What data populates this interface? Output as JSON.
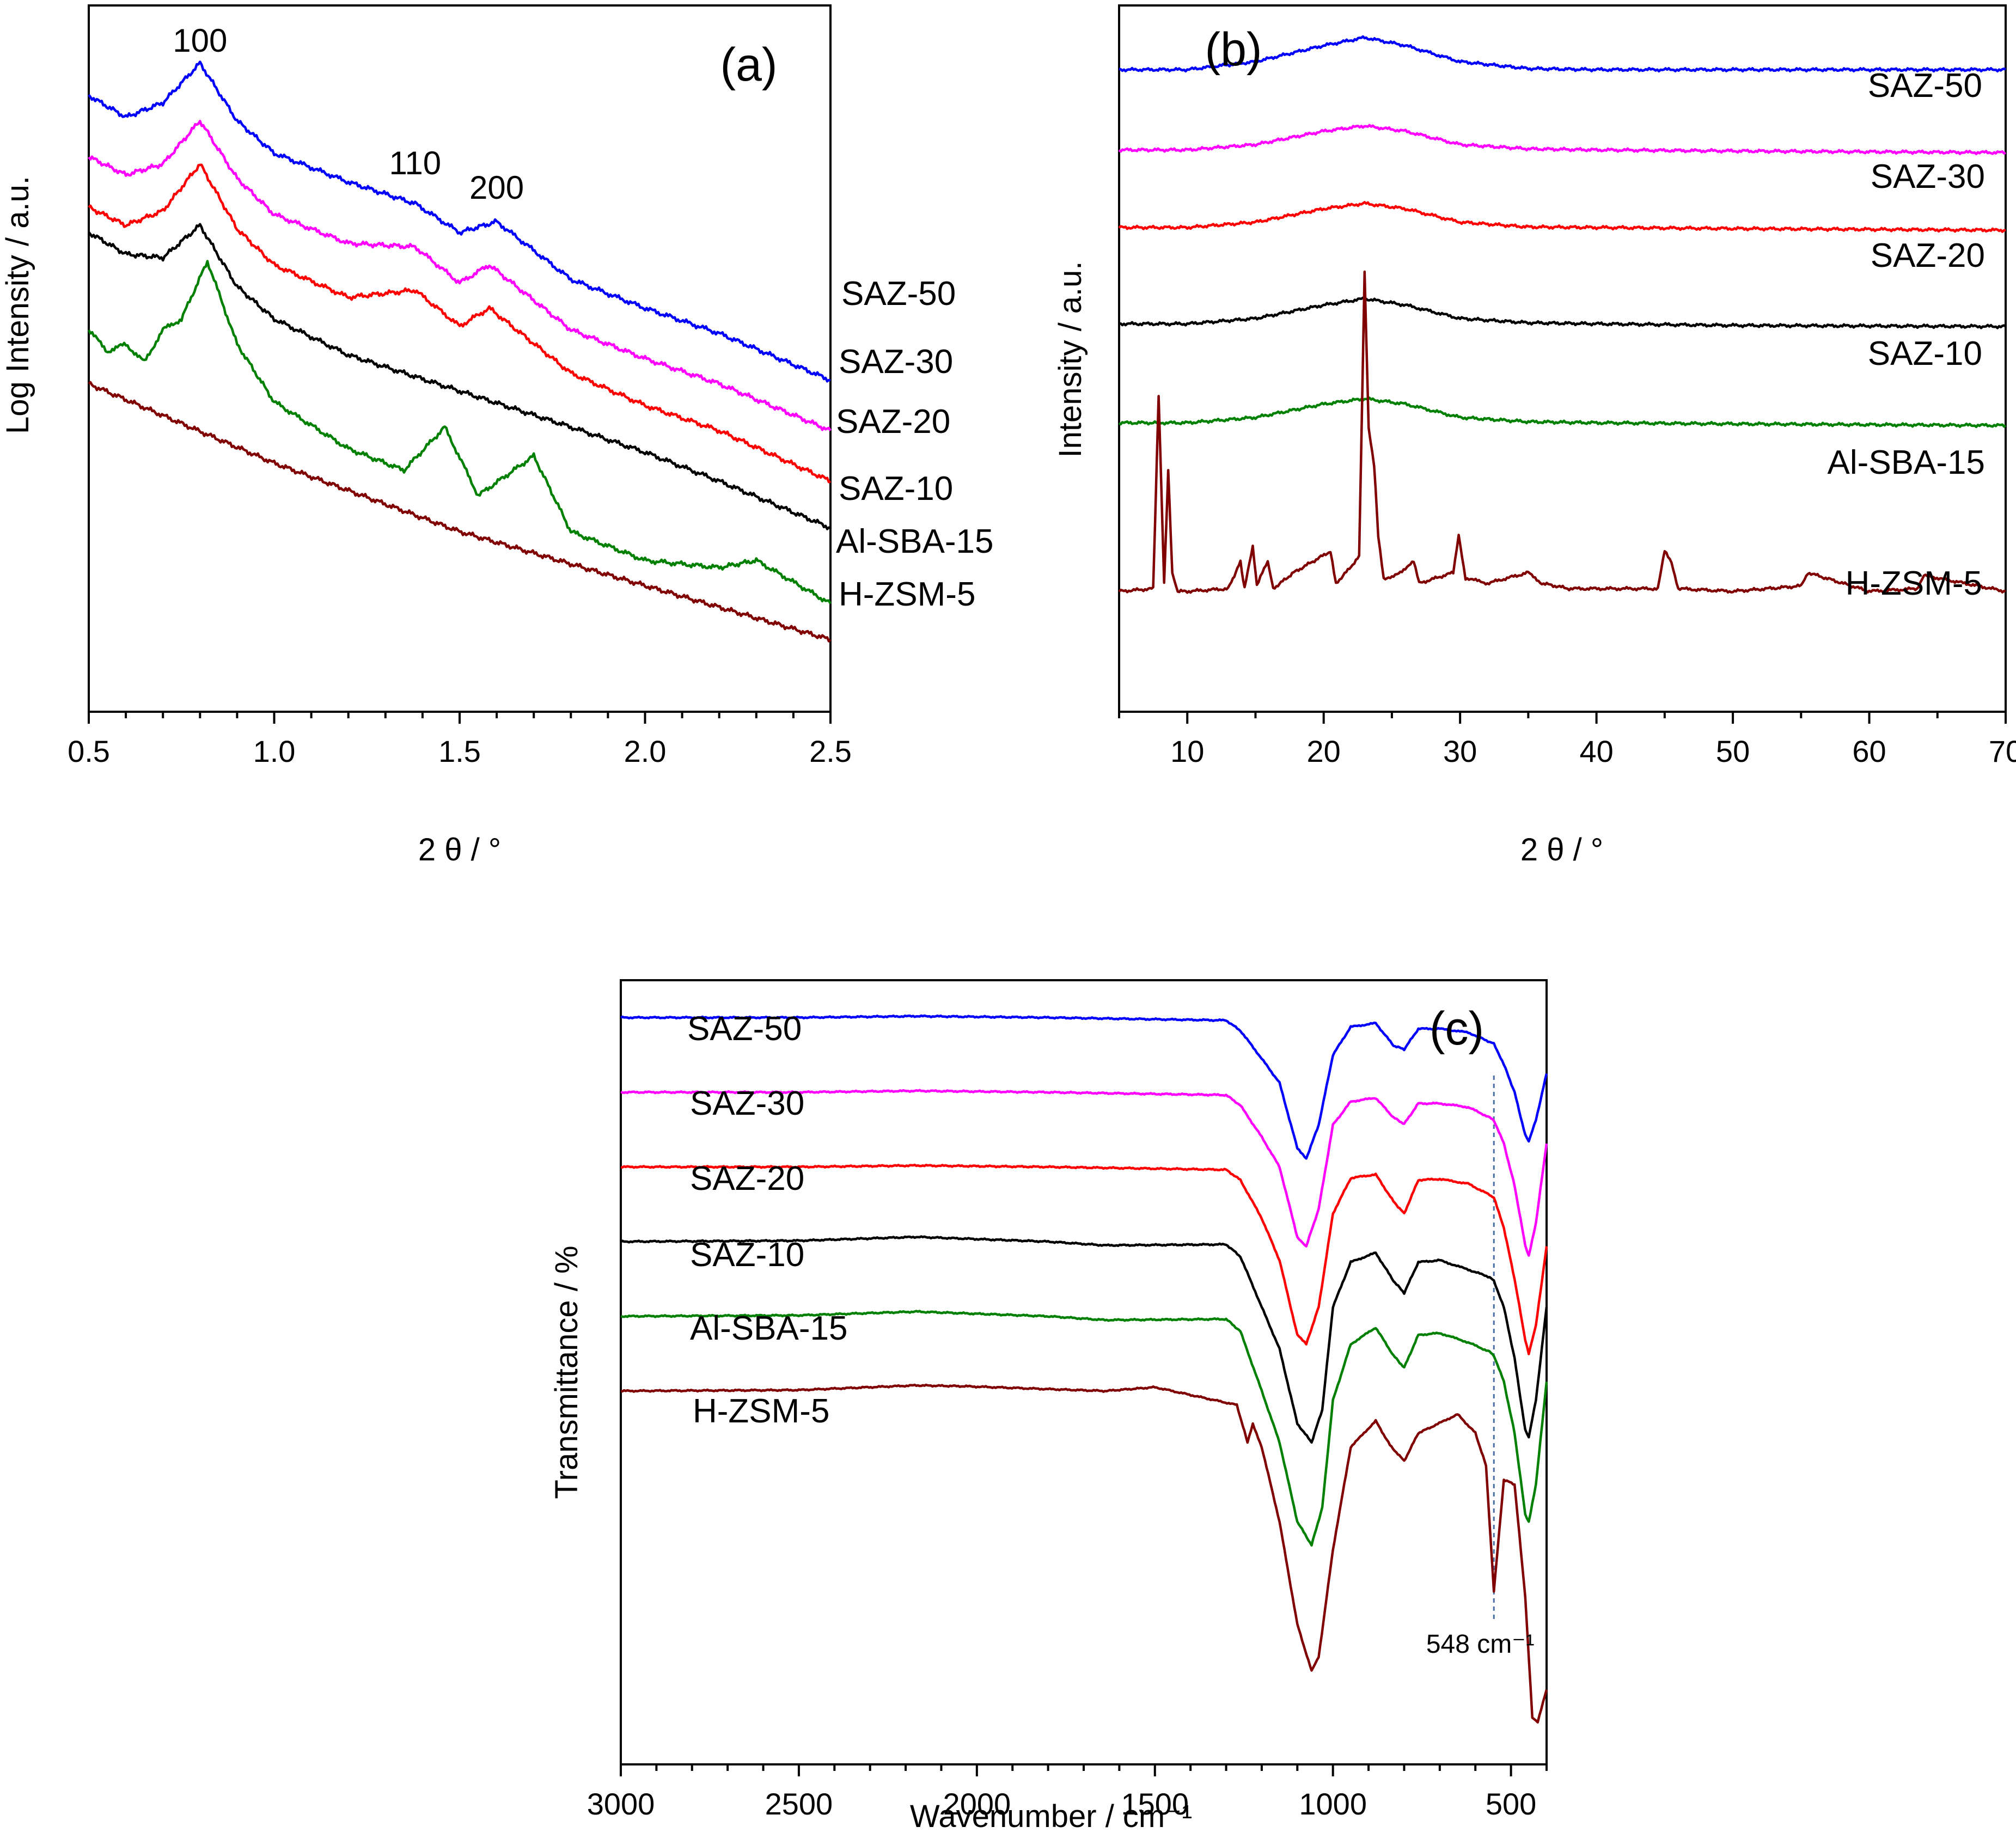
{
  "chart_data": [
    {
      "type": "line",
      "panel_label": "(a)",
      "xlabel": "2 θ / °",
      "ylabel": "Log Intensity / a.u.",
      "xlim": [
        0.5,
        2.5
      ],
      "xticks": [
        "0.5",
        "1.0",
        "1.5",
        "2.0",
        "2.5"
      ],
      "yticks": [],
      "peak_labels": [
        {
          "text": "100",
          "x": 0.8
        },
        {
          "text": "110",
          "x": 1.38
        },
        {
          "text": "200",
          "x": 1.6
        }
      ],
      "series": [
        {
          "name": "SAZ-50",
          "color": "#0000ff",
          "x": [
            0.5,
            0.6,
            0.7,
            0.8,
            0.9,
            1.0,
            1.2,
            1.38,
            1.5,
            1.6,
            1.8,
            2.0,
            2.2,
            2.5
          ],
          "values": [
            8.55,
            8.25,
            8.45,
            9.0,
            8.2,
            7.75,
            7.35,
            7.05,
            6.65,
            6.8,
            6.0,
            5.6,
            5.25,
            4.6
          ]
        },
        {
          "name": "SAZ-30",
          "color": "#ff00ff",
          "x": [
            0.5,
            0.6,
            0.7,
            0.8,
            0.9,
            1.0,
            1.2,
            1.38,
            1.5,
            1.58,
            1.8,
            2.0,
            2.2,
            2.5
          ],
          "values": [
            7.7,
            7.45,
            7.6,
            8.2,
            7.4,
            6.9,
            6.5,
            6.45,
            5.95,
            6.2,
            5.3,
            4.9,
            4.55,
            3.9
          ]
        },
        {
          "name": "SAZ-20",
          "color": "#ff0000",
          "x": [
            0.5,
            0.6,
            0.7,
            0.8,
            0.9,
            1.0,
            1.2,
            1.38,
            1.5,
            1.58,
            1.8,
            2.0,
            2.2,
            2.5
          ],
          "values": [
            7.0,
            6.75,
            6.95,
            7.6,
            6.7,
            6.2,
            5.75,
            5.85,
            5.35,
            5.6,
            4.7,
            4.25,
            3.9,
            3.2
          ]
        },
        {
          "name": "SAZ-10",
          "color": "#000000",
          "x": [
            0.5,
            0.6,
            0.7,
            0.8,
            0.9,
            1.0,
            1.2,
            1.5,
            1.8,
            2.0,
            2.2,
            2.5
          ],
          "values": [
            6.65,
            6.35,
            6.3,
            6.75,
            5.9,
            5.45,
            4.95,
            4.45,
            3.95,
            3.6,
            3.2,
            2.55
          ]
        },
        {
          "name": "Al-SBA-15",
          "color": "#008000",
          "x": [
            0.5,
            0.55,
            0.6,
            0.65,
            0.7,
            0.75,
            0.82,
            0.9,
            1.0,
            1.2,
            1.35,
            1.46,
            1.55,
            1.7,
            1.8,
            2.0,
            2.2,
            2.3,
            2.5
          ],
          "values": [
            5.3,
            5.0,
            5.1,
            4.85,
            5.3,
            5.45,
            6.25,
            5.1,
            4.3,
            3.65,
            3.35,
            3.95,
            3.0,
            3.55,
            2.5,
            2.1,
            2.0,
            2.1,
            1.5
          ]
        },
        {
          "name": "H-ZSM-5",
          "color": "#800000",
          "x": [
            0.5,
            1.0,
            1.5,
            2.0,
            2.5
          ],
          "values": [
            4.55,
            3.45,
            2.5,
            1.75,
            1.0
          ]
        }
      ]
    },
    {
      "type": "line",
      "panel_label": "(b)",
      "xlabel": "2 θ / °",
      "ylabel": "Intensity / a.u.",
      "xlim": [
        5,
        70
      ],
      "xticks": [
        "10",
        "20",
        "30",
        "40",
        "50",
        "60",
        "70"
      ],
      "yticks": [],
      "series": [
        {
          "name": "SAZ-50",
          "color": "#0000ff",
          "x": [
            5,
            10,
            15,
            20,
            23,
            26,
            30,
            35,
            40,
            50,
            70
          ],
          "values": [
            10.0,
            10.0,
            10.15,
            10.45,
            10.6,
            10.45,
            10.15,
            10.02,
            10.0,
            10.0,
            10.0
          ]
        },
        {
          "name": "SAZ-30",
          "color": "#ff00ff",
          "x": [
            5,
            10,
            15,
            20,
            23,
            26,
            30,
            35,
            40,
            50,
            70
          ],
          "values": [
            8.5,
            8.5,
            8.6,
            8.85,
            8.95,
            8.85,
            8.6,
            8.52,
            8.5,
            8.48,
            8.45
          ]
        },
        {
          "name": "SAZ-20",
          "color": "#ff0000",
          "x": [
            5,
            10,
            15,
            20,
            23,
            26,
            30,
            35,
            40,
            50,
            70
          ],
          "values": [
            7.05,
            7.05,
            7.15,
            7.4,
            7.5,
            7.4,
            7.15,
            7.06,
            7.05,
            7.03,
            7.0
          ]
        },
        {
          "name": "SAZ-10",
          "color": "#000000",
          "x": [
            5,
            10,
            15,
            20,
            23,
            26,
            30,
            35,
            40,
            50,
            70
          ],
          "values": [
            5.25,
            5.25,
            5.35,
            5.6,
            5.72,
            5.6,
            5.35,
            5.27,
            5.25,
            5.22,
            5.2
          ]
        },
        {
          "name": "Al-SBA-15",
          "color": "#008000",
          "x": [
            5,
            10,
            15,
            20,
            23,
            26,
            30,
            35,
            40,
            50,
            70
          ],
          "values": [
            3.4,
            3.4,
            3.5,
            3.75,
            3.85,
            3.75,
            3.5,
            3.42,
            3.4,
            3.38,
            3.35
          ]
        },
        {
          "name": "H-ZSM-5",
          "color": "#800000",
          "x": [
            5,
            7.5,
            7.9,
            8.3,
            8.6,
            8.9,
            9.3,
            10,
            13,
            13.9,
            14.2,
            14.8,
            15.1,
            15.5,
            15.9,
            16.3,
            17.8,
            20.5,
            20.9,
            21.3,
            22.6,
            23.0,
            23.3,
            23.7,
            24.0,
            24.4,
            25,
            26.6,
            27,
            29.5,
            29.9,
            30.4,
            32,
            35,
            36,
            38,
            44.5,
            45.0,
            45.5,
            46,
            50,
            55,
            55.5,
            60,
            63.5,
            64,
            70
          ],
          "values": [
            0.25,
            0.3,
            3.9,
            0.4,
            2.5,
            0.6,
            0.25,
            0.25,
            0.3,
            0.8,
            0.3,
            1.1,
            0.35,
            0.6,
            0.8,
            0.3,
            0.6,
            1.0,
            0.4,
            0.5,
            0.9,
            6.2,
            3.3,
            2.6,
            1.3,
            0.5,
            0.5,
            0.8,
            0.4,
            0.6,
            1.3,
            0.5,
            0.4,
            0.6,
            0.4,
            0.3,
            0.3,
            1.0,
            0.8,
            0.3,
            0.25,
            0.35,
            0.6,
            0.25,
            0.3,
            0.55,
            0.25
          ]
        }
      ]
    },
    {
      "type": "line",
      "panel_label": "(c)",
      "xlabel": "Wavenumber / cm⁻¹",
      "ylabel": "Transmittance / %",
      "xlim": [
        3000,
        400
      ],
      "xticks": [
        "3000",
        "2500",
        "2000",
        "1500",
        "1000",
        "500"
      ],
      "yticks": [],
      "annotation": {
        "text": "548 cm⁻¹",
        "x": 548
      },
      "series": [
        {
          "name": "SAZ-50",
          "color": "#0000ff",
          "x": [
            3000,
            2500,
            2170,
            1800,
            1640,
            1300,
            1260,
            1200,
            1150,
            1100,
            1075,
            1040,
            1000,
            950,
            880,
            830,
            800,
            760,
            700,
            620,
            560,
            548,
            520,
            490,
            460,
            450,
            430,
            400
          ],
          "values": [
            100,
            100,
            100.15,
            100,
            99.9,
            99.7,
            98.6,
            95.6,
            93.0,
            86.0,
            84.9,
            88.5,
            96.0,
            99.0,
            99.4,
            97.0,
            96.6,
            98.8,
            98.8,
            98.4,
            97.4,
            97.2,
            95.0,
            92.0,
            87.4,
            86.7,
            89.0,
            94.0
          ]
        },
        {
          "name": "SAZ-30",
          "color": "#ff00ff",
          "x": [
            3000,
            2500,
            2170,
            1800,
            1640,
            1300,
            1260,
            1200,
            1150,
            1100,
            1075,
            1040,
            1000,
            950,
            880,
            830,
            800,
            760,
            700,
            620,
            560,
            548,
            520,
            490,
            460,
            450,
            430,
            400
          ],
          "values": [
            92.0,
            92.0,
            92.15,
            92.0,
            91.9,
            91.7,
            90.6,
            87.2,
            84.0,
            76.5,
            75.5,
            79.5,
            88.5,
            91.0,
            91.4,
            89.3,
            88.6,
            90.8,
            90.8,
            90.4,
            89.3,
            89.0,
            86.5,
            82.0,
            75.6,
            74.5,
            78.0,
            86.5
          ]
        },
        {
          "name": "SAZ-20",
          "color": "#ff0000",
          "x": [
            3000,
            2500,
            2170,
            1800,
            1640,
            1300,
            1260,
            1200,
            1150,
            1100,
            1075,
            1040,
            1000,
            950,
            880,
            830,
            800,
            760,
            700,
            620,
            560,
            548,
            520,
            490,
            460,
            450,
            430,
            400
          ],
          "values": [
            84.0,
            84.0,
            84.15,
            84.0,
            83.9,
            83.7,
            82.6,
            78.5,
            74.0,
            66.0,
            65.0,
            69.0,
            79.0,
            82.8,
            83.2,
            80.3,
            79.0,
            82.6,
            82.7,
            82.2,
            81.0,
            80.7,
            77.5,
            72.0,
            65.5,
            64.0,
            67.0,
            75.5
          ]
        },
        {
          "name": "SAZ-10",
          "color": "#000000",
          "x": [
            3000,
            2500,
            2170,
            1800,
            1640,
            1300,
            1260,
            1200,
            1150,
            1100,
            1060,
            1030,
            1000,
            950,
            880,
            830,
            800,
            760,
            700,
            620,
            560,
            548,
            520,
            490,
            460,
            450,
            430,
            400
          ],
          "values": [
            76.0,
            76.1,
            76.5,
            76.0,
            75.6,
            75.7,
            74.4,
            69.0,
            64.5,
            56.5,
            54.5,
            58.0,
            69.0,
            73.8,
            74.8,
            71.8,
            70.5,
            73.8,
            74.0,
            73.0,
            72.2,
            71.8,
            69.0,
            63.5,
            55.8,
            55.0,
            59.0,
            69.0
          ]
        },
        {
          "name": "Al-SBA-15",
          "color": "#008000",
          "x": [
            3000,
            2500,
            2170,
            1800,
            1640,
            1300,
            1260,
            1200,
            1150,
            1100,
            1060,
            1030,
            1000,
            950,
            880,
            830,
            800,
            760,
            700,
            620,
            560,
            548,
            520,
            490,
            460,
            450,
            430,
            400
          ],
          "values": [
            68.0,
            68.1,
            68.5,
            68.0,
            67.6,
            67.7,
            66.4,
            60.0,
            54.5,
            46.0,
            43.5,
            47.5,
            59.0,
            65.0,
            66.8,
            63.8,
            62.5,
            66.0,
            66.2,
            65.2,
            64.2,
            63.8,
            61.0,
            55.5,
            46.8,
            46.0,
            50.0,
            61.0
          ]
        },
        {
          "name": "H-ZSM-5",
          "color": "#800000",
          "x": [
            3000,
            2500,
            2170,
            2030,
            1800,
            1640,
            1500,
            1270,
            1240,
            1225,
            1200,
            1150,
            1100,
            1060,
            1040,
            1000,
            950,
            880,
            840,
            800,
            760,
            720,
            650,
            600,
            570,
            548,
            520,
            490,
            460,
            440,
            425,
            400
          ],
          "values": [
            60.0,
            60.1,
            60.6,
            60.5,
            60.2,
            60.0,
            60.4,
            58.5,
            54.5,
            56.5,
            54.0,
            46.0,
            35.0,
            30.0,
            31.5,
            43.0,
            54.0,
            56.8,
            54.2,
            52.5,
            55.5,
            56.2,
            57.5,
            55.5,
            52.0,
            38.5,
            50.5,
            50.0,
            38.0,
            25.0,
            24.5,
            28.0
          ]
        }
      ]
    }
  ]
}
